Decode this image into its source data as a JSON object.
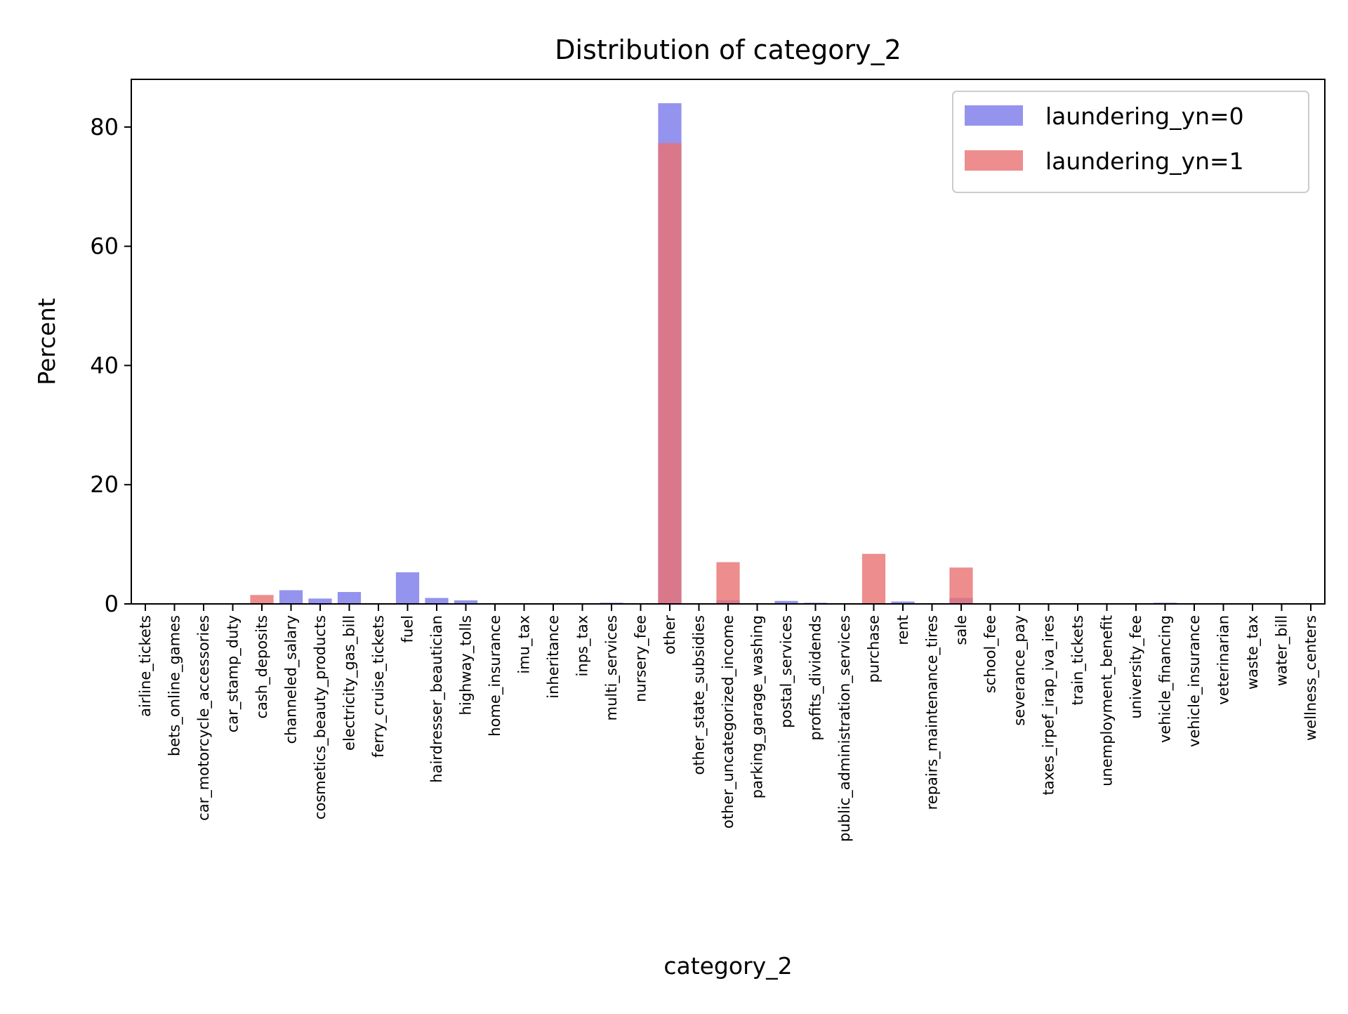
{
  "chart_data": {
    "type": "bar",
    "title": "Distribution of category_2",
    "xlabel": "category_2",
    "ylabel": "Percent",
    "ylim": [
      0,
      88
    ],
    "yticks": [
      0,
      20,
      40,
      60,
      80
    ],
    "grid": false,
    "legend_position": "top-right",
    "categories": [
      "airline_tickets",
      "bets_online_games",
      "car_motorcycle_accessories",
      "car_stamp_duty",
      "cash_deposits",
      "channeled_salary",
      "cosmetics_beauty_products",
      "electricity_gas_bill",
      "ferry_cruise_tickets",
      "fuel",
      "hairdresser_beautician",
      "highway_tolls",
      "home_insurance",
      "imu_tax",
      "inheritance",
      "inps_tax",
      "multi_services",
      "nursery_fee",
      "other",
      "other_state_subsidies",
      "other_uncategorized_income",
      "parking_garage_washing",
      "postal_services",
      "profits_dividends",
      "public_administration_services",
      "purchase",
      "rent",
      "repairs_maintenance_tires",
      "sale",
      "school_fee",
      "severance_pay",
      "taxes_irpef_irap_iva_ires",
      "train_tickets",
      "unemployment_benefit",
      "university_fee",
      "vehicle_financing",
      "vehicle_insurance",
      "veterinarian",
      "waste_tax",
      "water_bill",
      "wellness_centers"
    ],
    "series": [
      {
        "name": "laundering_yn=0",
        "color": "#7070e8",
        "opacity": 0.75,
        "values": [
          0,
          0,
          0,
          0,
          0,
          2.3,
          0.9,
          2.0,
          0,
          5.3,
          1.0,
          0.6,
          0,
          0,
          0,
          0,
          0.2,
          0,
          84.0,
          0,
          0.6,
          0,
          0.5,
          0.2,
          0,
          0,
          0.4,
          0,
          1.0,
          0,
          0,
          0,
          0,
          0,
          0,
          0.2,
          0,
          0,
          0,
          0,
          0
        ]
      },
      {
        "name": "laundering_yn=1",
        "color": "#e87070",
        "opacity": 0.8,
        "values": [
          0,
          0,
          0,
          0,
          1.5,
          0,
          0,
          0,
          0,
          0,
          0,
          0,
          0,
          0,
          0,
          0,
          0,
          0,
          77.3,
          0,
          7.0,
          0,
          0,
          0,
          0,
          8.4,
          0,
          0,
          6.1,
          0,
          0,
          0,
          0,
          0,
          0,
          0,
          0,
          0,
          0,
          0,
          0
        ]
      }
    ]
  }
}
